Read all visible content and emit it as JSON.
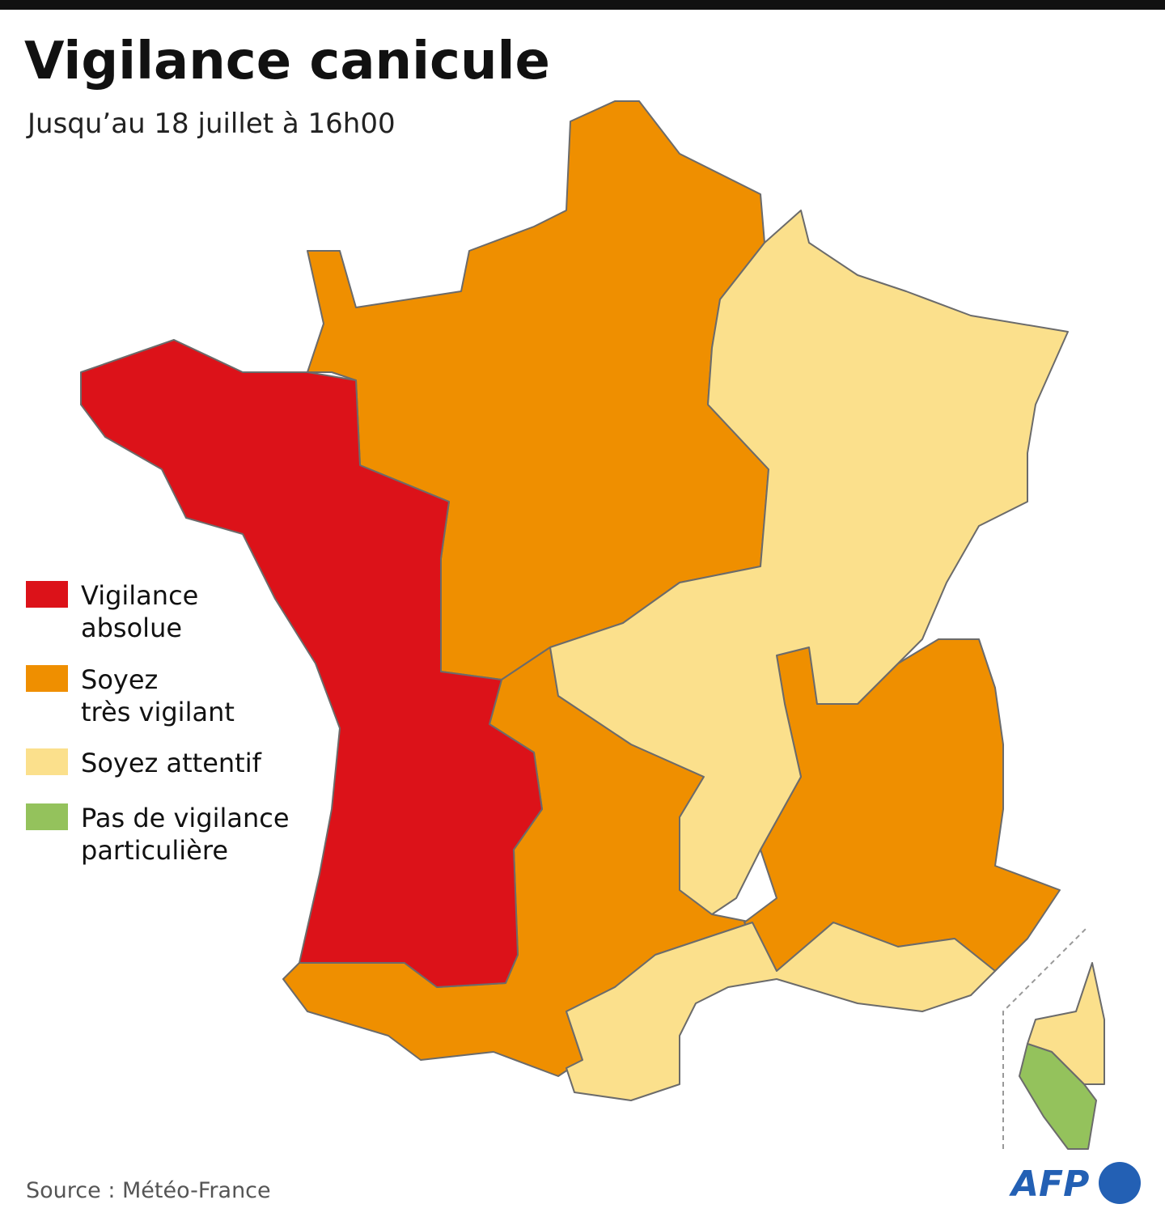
{
  "title": "Vigilance canicule",
  "subtitle": "Jusqu’au 18 juillet à 16h00",
  "legend": [
    {
      "lines": [
        "Vigilance",
        "absolue"
      ],
      "color": "#dc1219"
    },
    {
      "lines": [
        "Soyez",
        "très vigilant"
      ],
      "color": "#ef8f00"
    },
    {
      "lines": [
        "Soyez attentif"
      ],
      "color": "#fbe08c"
    },
    {
      "lines": [
        "Pas de vigilance",
        "particulière"
      ],
      "color": "#94c25c"
    }
  ],
  "source": "Source : Météo-France",
  "logo": "AFP"
}
